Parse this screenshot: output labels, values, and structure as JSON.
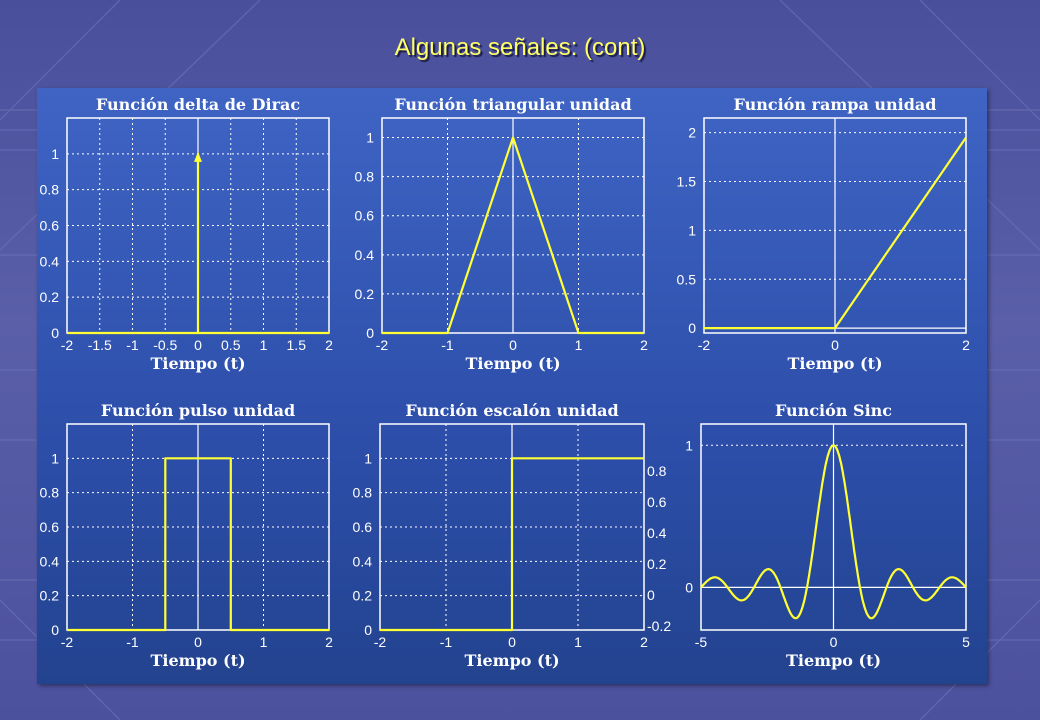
{
  "slide": {
    "title": "Algunas señales: (cont)"
  },
  "colors": {
    "signal": "#ffff33",
    "axes": "#ffffff",
    "panel": "#2f52ae",
    "title": "#ffff66"
  },
  "chart_data": [
    {
      "type": "line",
      "title": "Función delta de Dirac",
      "xlabel": "Tiempo (t)",
      "xlim": [
        -2,
        2
      ],
      "ylim": [
        0,
        1.2
      ],
      "xticks": [
        "-2",
        "-1.5",
        "-1",
        "-0.5",
        "0",
        "0.5",
        "1",
        "1.5",
        "2"
      ],
      "yticks": [
        "0",
        "0.2",
        "0.4",
        "0.6",
        "0.8",
        "1"
      ],
      "x": [
        -2,
        0,
        0,
        0,
        2
      ],
      "y": [
        0,
        0,
        1,
        0,
        0
      ],
      "grid": "dotted",
      "arrow_at": [
        0,
        1
      ]
    },
    {
      "type": "line",
      "title": "Función triangular unidad",
      "xlabel": "Tiempo (t)",
      "xlim": [
        -2,
        2
      ],
      "ylim": [
        0,
        1.1
      ],
      "xticks": [
        "-2",
        "-1",
        "0",
        "1",
        "2"
      ],
      "yticks": [
        "0",
        "0.2",
        "0.4",
        "0.6",
        "0.8",
        "1"
      ],
      "x": [
        -2,
        -1,
        0,
        1,
        2
      ],
      "y": [
        0,
        0,
        1,
        0,
        0
      ],
      "grid": "dotted"
    },
    {
      "type": "line",
      "title": "Función rampa unidad",
      "xlabel": "Tiempo (t)",
      "xlim": [
        -2,
        2
      ],
      "ylim": [
        -0.05,
        2.15
      ],
      "xticks": [
        "-2",
        "0",
        "2"
      ],
      "yticks": [
        "0",
        "0.5",
        "1",
        "1.5",
        "2"
      ],
      "x": [
        -2,
        0,
        2
      ],
      "y": [
        0,
        0,
        1.95
      ],
      "grid": "dotted"
    },
    {
      "type": "line",
      "title": "Función pulso unidad",
      "xlabel": "Tiempo (t)",
      "xlim": [
        -2,
        2
      ],
      "ylim": [
        0,
        1.2
      ],
      "xticks": [
        "-2",
        "-1",
        "0",
        "1",
        "2"
      ],
      "yticks": [
        "0",
        "0.2",
        "0.4",
        "0.6",
        "0.8",
        "1"
      ],
      "x": [
        -2,
        -0.5,
        -0.5,
        0.5,
        0.5,
        2
      ],
      "y": [
        0,
        0,
        1,
        1,
        0,
        0
      ],
      "grid": "dotted"
    },
    {
      "type": "line",
      "title": "Función escalón unidad",
      "xlabel": "Tiempo (t)",
      "xlim": [
        -2,
        2
      ],
      "ylim": [
        0,
        1.2
      ],
      "xticks": [
        "-2",
        "-1",
        "0",
        "1",
        "2"
      ],
      "yticks": [
        "0",
        "0.2",
        "0.4",
        "0.6",
        "0.8",
        "1"
      ],
      "x": [
        -2,
        0,
        0,
        2
      ],
      "y": [
        0,
        0,
        1,
        1
      ],
      "grid": "dotted",
      "ghost_yticks": [
        "0.8",
        "0.6",
        "0.4",
        "0.2",
        "0",
        "-0.2"
      ]
    },
    {
      "type": "line",
      "title": "Función Sinc",
      "xlabel": "Tiempo (t)",
      "xlim": [
        -5,
        5
      ],
      "ylim": [
        -0.3,
        1.15
      ],
      "xticks": [
        "-5",
        "0",
        "5"
      ],
      "yticks": [
        "0",
        "1"
      ],
      "function": "sin(pi t)/(pi t)",
      "grid": "dotted"
    }
  ]
}
